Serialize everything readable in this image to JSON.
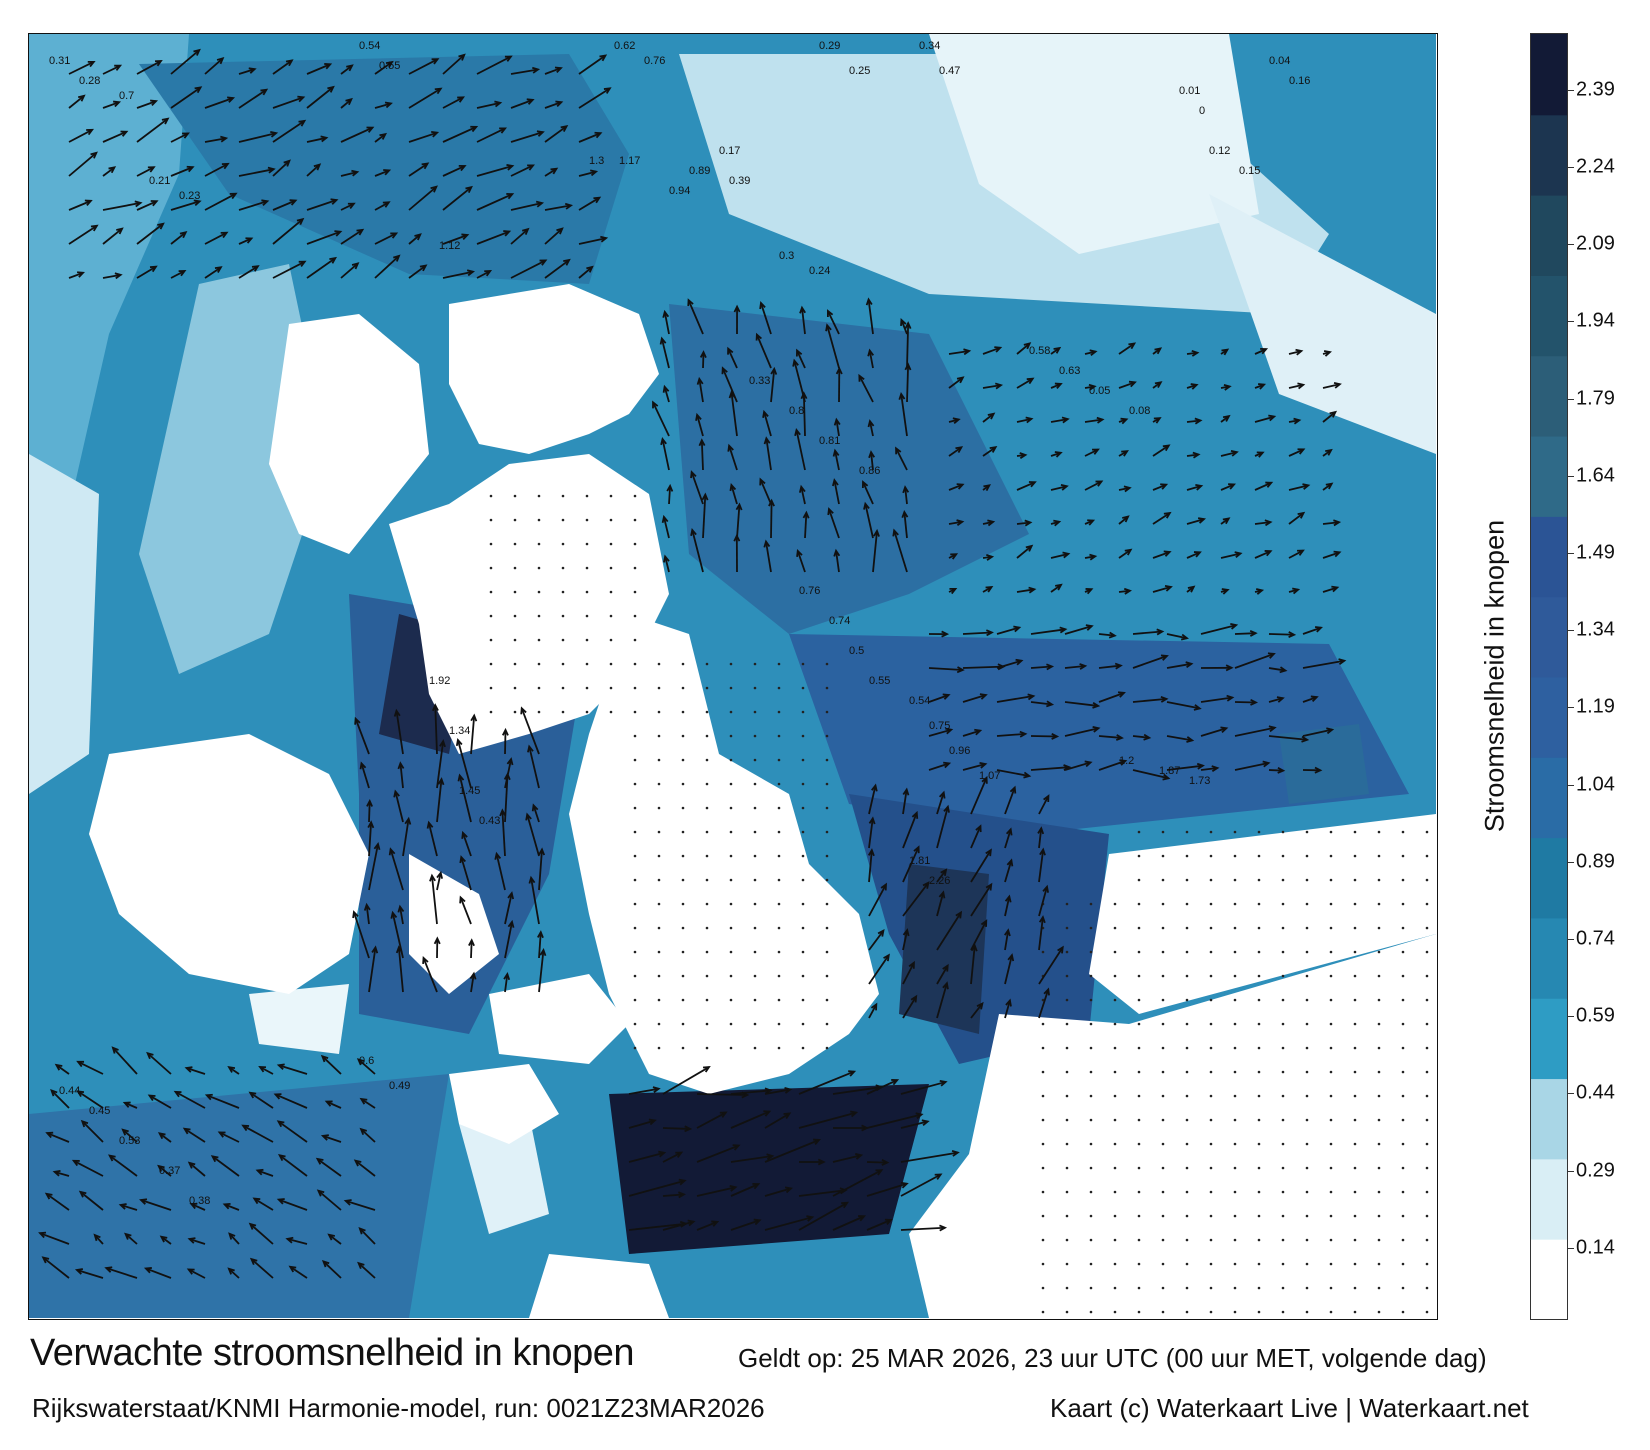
{
  "title": "Verwachte stroomsnelheid in knopen",
  "valid_time": "Geldt op: 25 MAR 2026, 23 uur UTC (00 uur MET, volgende dag)",
  "model_run": "Rijkswaterstaat/KNMI Harmonie-model, run: 0021Z23MAR2026",
  "credit": "Kaart (c) Waterkaart Live | Waterkaart.net",
  "colorbar": {
    "label": "Stroomsnelheid in knopen",
    "ticks": [
      "2.39",
      "2.24",
      "2.09",
      "1.94",
      "1.79",
      "1.64",
      "1.49",
      "1.34",
      "1.19",
      "1.04",
      "0.89",
      "0.74",
      "0.59",
      "0.44",
      "0.29",
      "0.14"
    ],
    "tick_values": [
      2.39,
      2.24,
      2.09,
      1.94,
      1.79,
      1.64,
      1.49,
      1.34,
      1.19,
      1.04,
      0.89,
      0.74,
      0.59,
      0.44,
      0.29,
      0.14
    ],
    "range": [
      0,
      2.5
    ],
    "colors": [
      "#ffffff",
      "#d9eef5",
      "#a9d6e6",
      "#2e9cc4",
      "#2688b2",
      "#1f7aa3",
      "#2a6ca6",
      "#2e60a0",
      "#2f5a9a",
      "#2b5495",
      "#2f6a88",
      "#2c5e78",
      "#23536b",
      "#20485e",
      "#1c3550",
      "#121a36"
    ]
  },
  "map_labels": [
    {
      "text": "0.31",
      "v": 0.31
    },
    {
      "text": "0.28",
      "v": 0.28
    },
    {
      "text": "0.54",
      "v": 0.54
    },
    {
      "text": "0.55",
      "v": 0.55
    },
    {
      "text": "0.62",
      "v": 0.62
    },
    {
      "text": "0.76",
      "v": 0.76
    },
    {
      "text": "0.29",
      "v": 0.29
    },
    {
      "text": "0.25",
      "v": 0.25
    },
    {
      "text": "0.34",
      "v": 0.34
    },
    {
      "text": "0.47",
      "v": 0.47
    },
    {
      "text": "0.7",
      "v": 0.7
    },
    {
      "text": "1.3",
      "v": 1.3
    },
    {
      "text": "1.17",
      "v": 1.17
    },
    {
      "text": "0.94",
      "v": 0.94
    },
    {
      "text": "0.89",
      "v": 0.89
    },
    {
      "text": "1.12",
      "v": 1.12
    },
    {
      "text": "0.21",
      "v": 0.21
    },
    {
      "text": "0.23",
      "v": 0.23
    },
    {
      "text": "0.3",
      "v": 0.3
    },
    {
      "text": "0.24",
      "v": 0.24
    },
    {
      "text": "0.17",
      "v": 0.17
    },
    {
      "text": "0.39",
      "v": 0.39
    },
    {
      "text": "0.33",
      "v": 0.33
    },
    {
      "text": "0.8",
      "v": 0.8
    },
    {
      "text": "0.81",
      "v": 0.81
    },
    {
      "text": "0.86",
      "v": 0.86
    },
    {
      "text": "0.76",
      "v": 0.76
    },
    {
      "text": "0.74",
      "v": 0.74
    },
    {
      "text": "0.5",
      "v": 0.5
    },
    {
      "text": "0.55",
      "v": 0.55
    },
    {
      "text": "0.54",
      "v": 0.54
    },
    {
      "text": "0.75",
      "v": 0.75
    },
    {
      "text": "0.96",
      "v": 0.96
    },
    {
      "text": "1.07",
      "v": 1.07
    },
    {
      "text": "1.2",
      "v": 1.2
    },
    {
      "text": "1.87",
      "v": 1.87
    },
    {
      "text": "1.73",
      "v": 1.73
    },
    {
      "text": "1.81",
      "v": 1.81
    },
    {
      "text": "2.26",
      "v": 2.26
    },
    {
      "text": "1.92",
      "v": 1.92
    },
    {
      "text": "1.34",
      "v": 1.34
    },
    {
      "text": "1.45",
      "v": 1.45
    },
    {
      "text": "0.43",
      "v": 0.43
    },
    {
      "text": "0.44",
      "v": 0.44
    },
    {
      "text": "0.45",
      "v": 0.45
    },
    {
      "text": "0.53",
      "v": 0.53
    },
    {
      "text": "0.37",
      "v": 0.37
    },
    {
      "text": "0.38",
      "v": 0.38
    },
    {
      "text": "0.6",
      "v": 0.6
    },
    {
      "text": "0.49",
      "v": 0.49
    },
    {
      "text": "0.58",
      "v": 0.58
    },
    {
      "text": "0.63",
      "v": 0.63
    },
    {
      "text": "0.05",
      "v": 0.05
    },
    {
      "text": "0.08",
      "v": 0.08
    },
    {
      "text": "0.12",
      "v": 0.12
    },
    {
      "text": "0.15",
      "v": 0.15
    },
    {
      "text": "0.01",
      "v": 0.01
    },
    {
      "text": "0",
      "v": 0
    },
    {
      "text": "0.04",
      "v": 0.04
    },
    {
      "text": "0.16",
      "v": 0.16
    }
  ]
}
